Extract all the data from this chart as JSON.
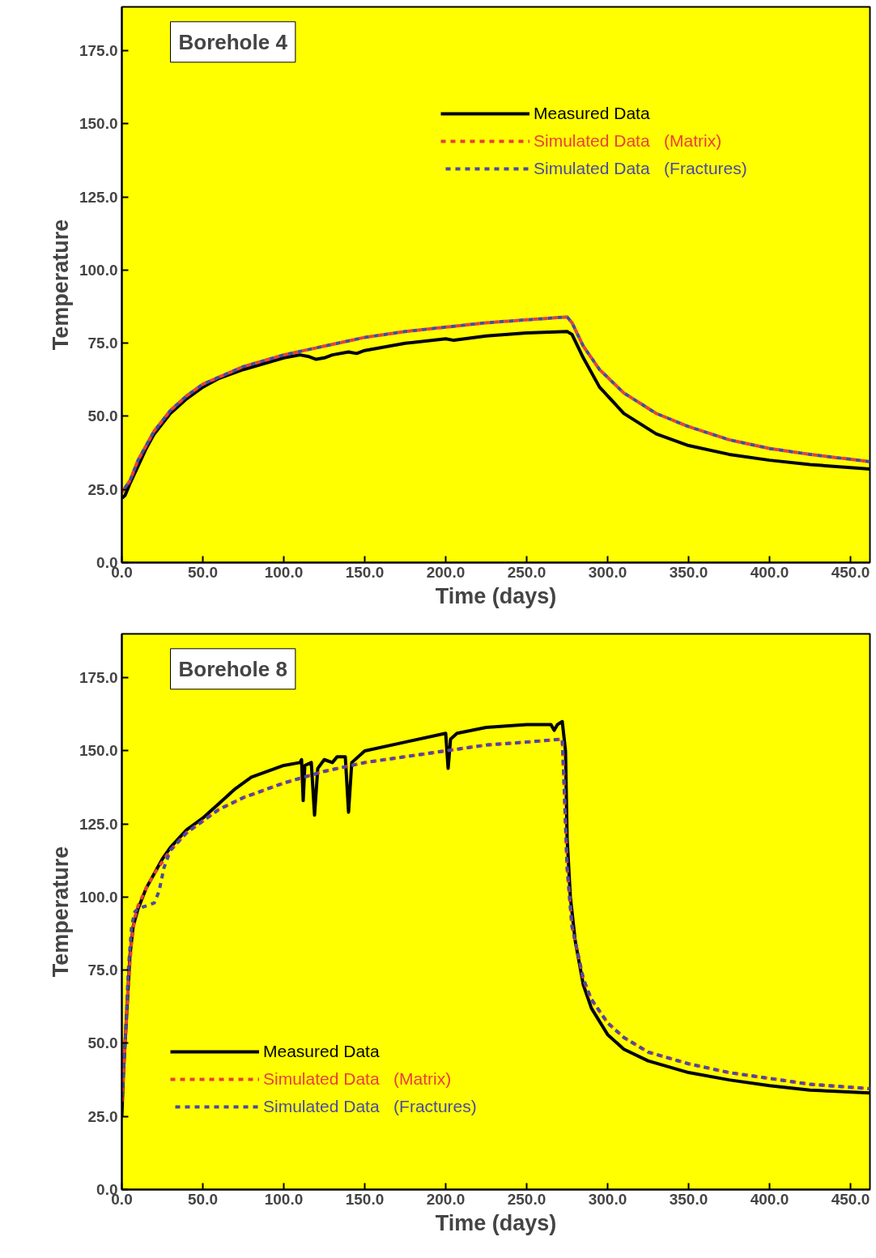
{
  "chart_data": [
    {
      "type": "line",
      "title": "Borehole 4",
      "xlabel": "Time (days)",
      "ylabel": "Temperature",
      "xlim": [
        0,
        462
      ],
      "ylim": [
        0,
        190
      ],
      "xticks": [
        {
          "value": 0,
          "label": "0.0"
        },
        {
          "value": 50,
          "label": "50.0"
        },
        {
          "value": 100,
          "label": "100.0"
        },
        {
          "value": 150,
          "label": "150.0"
        },
        {
          "value": 200,
          "label": "200.0"
        },
        {
          "value": 250,
          "label": "250.0"
        },
        {
          "value": 300,
          "label": "300.0"
        },
        {
          "value": 350,
          "label": "350.0"
        },
        {
          "value": 400,
          "label": "400.0"
        },
        {
          "value": 450,
          "label": "450.0"
        }
      ],
      "yticks": [
        {
          "value": 0,
          "label": "0.0"
        },
        {
          "value": 25,
          "label": "25.0"
        },
        {
          "value": 50,
          "label": "50.0"
        },
        {
          "value": 75,
          "label": "75.0"
        },
        {
          "value": 100,
          "label": "100.0"
        },
        {
          "value": 125,
          "label": "125.0"
        },
        {
          "value": 150,
          "label": "150.0"
        },
        {
          "value": 175,
          "label": "175.0"
        }
      ],
      "grid": false,
      "legend": "top right",
      "series": [
        {
          "name": "Measured Data",
          "color": "#000000",
          "line_style": "solid",
          "x": [
            0,
            2,
            5,
            10,
            15,
            20,
            30,
            40,
            50,
            60,
            75,
            100,
            110,
            115,
            120,
            125,
            130,
            140,
            145,
            150,
            175,
            200,
            205,
            225,
            250,
            275,
            278,
            285,
            295,
            310,
            330,
            350,
            375,
            400,
            425,
            462
          ],
          "values": [
            22,
            23,
            27,
            33,
            39,
            44,
            51,
            56,
            60,
            63,
            66,
            70,
            71,
            70.5,
            69.5,
            70,
            71,
            72,
            71.5,
            72.5,
            75,
            76.5,
            76,
            77.5,
            78.5,
            79,
            78,
            70,
            60,
            51,
            44,
            40,
            37,
            35,
            33.5,
            32
          ]
        },
        {
          "name": "Simulated Data   (Matrix)",
          "color": "#e8403a",
          "line_style": "dashed",
          "x": [
            0,
            5,
            10,
            20,
            30,
            40,
            50,
            75,
            100,
            125,
            150,
            175,
            200,
            225,
            250,
            275,
            278,
            285,
            295,
            310,
            330,
            350,
            375,
            400,
            425,
            462
          ],
          "values": [
            24,
            28,
            35,
            45,
            52,
            57,
            61,
            67,
            71,
            74,
            77,
            79,
            80.5,
            82,
            83,
            84,
            82,
            74,
            66,
            58,
            51,
            46.5,
            42,
            39,
            37,
            34.5
          ]
        },
        {
          "name": "Simulated Data   (Fractures)",
          "color": "#4a4aa0",
          "line_style": "dashed",
          "x": [
            0,
            5,
            10,
            20,
            30,
            40,
            50,
            75,
            100,
            125,
            150,
            175,
            200,
            225,
            250,
            275,
            278,
            285,
            295,
            310,
            330,
            350,
            375,
            400,
            425,
            462
          ],
          "values": [
            24,
            28,
            35,
            45,
            52,
            57,
            61,
            67,
            71,
            74,
            77,
            79,
            80.5,
            82,
            83,
            84,
            82,
            74,
            66,
            58,
            51,
            46.5,
            42,
            39,
            37,
            34.5
          ]
        }
      ]
    },
    {
      "type": "line",
      "title": "Borehole 8",
      "xlabel": "Time (days)",
      "ylabel": "Temperature",
      "xlim": [
        0,
        462
      ],
      "ylim": [
        0,
        190
      ],
      "xticks": [
        {
          "value": 0,
          "label": "0.0"
        },
        {
          "value": 50,
          "label": "50.0"
        },
        {
          "value": 100,
          "label": "100.0"
        },
        {
          "value": 150,
          "label": "150.0"
        },
        {
          "value": 200,
          "label": "200.0"
        },
        {
          "value": 250,
          "label": "250.0"
        },
        {
          "value": 300,
          "label": "300.0"
        },
        {
          "value": 350,
          "label": "350.0"
        },
        {
          "value": 400,
          "label": "400.0"
        },
        {
          "value": 450,
          "label": "450.0"
        }
      ],
      "yticks": [
        {
          "value": 0,
          "label": "0.0"
        },
        {
          "value": 25,
          "label": "25.0"
        },
        {
          "value": 50,
          "label": "50.0"
        },
        {
          "value": 75,
          "label": "75.0"
        },
        {
          "value": 100,
          "label": "100.0"
        },
        {
          "value": 125,
          "label": "125.0"
        },
        {
          "value": 150,
          "label": "150.0"
        },
        {
          "value": 175,
          "label": "175.0"
        }
      ],
      "grid": false,
      "legend": "bottom left",
      "series": [
        {
          "name": "Measured Data",
          "color": "#000000",
          "line_style": "solid",
          "x": [
            0,
            1,
            3,
            5,
            7,
            10,
            15,
            20,
            25,
            30,
            40,
            50,
            60,
            70,
            80,
            90,
            100,
            110,
            111,
            112,
            113,
            117,
            119,
            121,
            125,
            130,
            133,
            138,
            140,
            142,
            150,
            175,
            200,
            201.5,
            203,
            207,
            225,
            250,
            265,
            267,
            269,
            272,
            274,
            275,
            277,
            280,
            285,
            290,
            300,
            310,
            325,
            350,
            375,
            400,
            425,
            462
          ],
          "values": [
            25,
            40,
            60,
            80,
            90,
            96,
            103,
            108,
            113,
            117,
            123,
            127,
            132,
            137,
            141,
            143,
            145,
            146,
            147,
            133,
            145,
            146,
            128,
            144,
            147,
            146,
            148,
            148,
            129,
            146,
            150,
            153,
            156,
            144,
            154,
            156,
            158,
            159,
            159,
            157,
            159,
            160,
            150,
            120,
            100,
            85,
            70,
            62,
            53,
            48,
            44,
            40,
            37.5,
            35.5,
            34,
            33
          ]
        },
        {
          "name": "Simulated Data   (Matrix)",
          "color": "#e8403a",
          "line_style": "dashed",
          "x": [
            0,
            2,
            4,
            6,
            8,
            10,
            15,
            20,
            30,
            40,
            50,
            60,
            75,
            100,
            125,
            150,
            175,
            200,
            225,
            250,
            272,
            273,
            275,
            278,
            285,
            290,
            300,
            310,
            325,
            350,
            375,
            400,
            425,
            462
          ],
          "values": [
            30,
            50,
            70,
            85,
            93,
            97,
            103,
            108,
            116,
            122,
            126,
            130,
            134,
            139,
            143,
            146,
            148,
            150,
            152,
            153,
            154,
            140,
            110,
            90,
            72,
            65,
            57,
            52,
            47,
            43,
            40,
            38,
            36,
            34.5
          ]
        },
        {
          "name": "Simulated Data   (Fractures)",
          "color": "#4a4aa0",
          "line_style": "dashed",
          "x": [
            0,
            2,
            4,
            6,
            8,
            10,
            15,
            20,
            23,
            26,
            30,
            40,
            50,
            60,
            75,
            100,
            125,
            150,
            175,
            200,
            225,
            250,
            272,
            273,
            275,
            278,
            285,
            290,
            300,
            310,
            325,
            350,
            375,
            400,
            425,
            462
          ],
          "values": [
            30,
            50,
            75,
            90,
            95,
            96,
            97,
            98,
            102,
            110,
            116,
            122,
            126,
            130,
            134,
            139,
            143,
            146,
            148,
            150,
            152,
            153,
            154,
            140,
            110,
            90,
            72,
            65,
            57,
            52,
            47,
            43,
            40,
            38,
            36,
            34.5
          ]
        }
      ]
    }
  ]
}
